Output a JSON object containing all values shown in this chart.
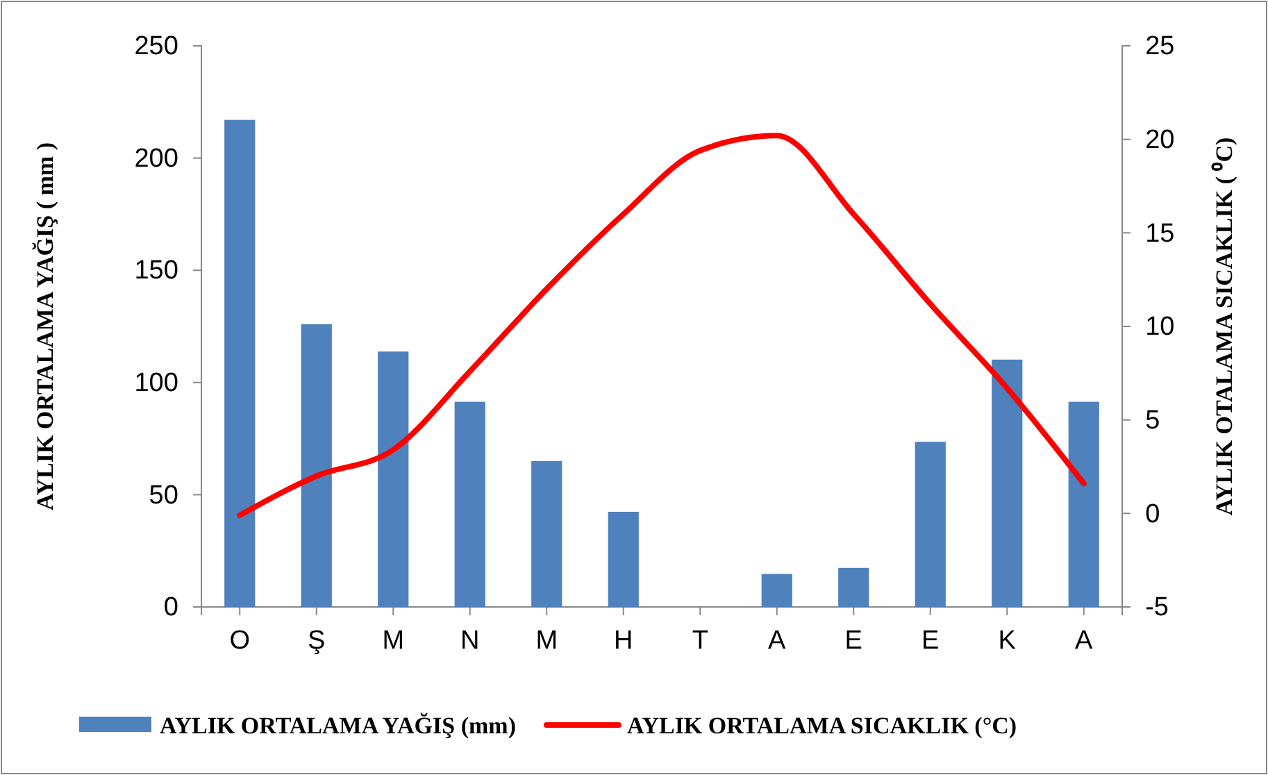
{
  "chart_data": {
    "type": "bar",
    "categories": [
      "O",
      "Ş",
      "M",
      "N",
      "M",
      "H",
      "T",
      "A",
      "E",
      "E",
      "K",
      "A"
    ],
    "ylabel": "AYLIK ORTALAMA YAĞIŞ  ( mm )",
    "y2label": "AYLIK OTALAMA SICAKLIK  ( ⁰C)",
    "ylim": [
      0,
      250
    ],
    "yticks": [
      0,
      50,
      100,
      150,
      200,
      250
    ],
    "y2lim": [
      -5,
      25
    ],
    "y2ticks": [
      -5,
      0,
      5,
      10,
      15,
      20,
      25
    ],
    "series": [
      {
        "name": "AYLIK  ORTALAMA YAĞIŞ (mm)",
        "color": "#4f81bd",
        "values": [
          217,
          126,
          113.8,
          91.4,
          65,
          42.4,
          0,
          14.7,
          17.4,
          73.6,
          110.2,
          91.4
        ]
      },
      {
        "name": "AYLIK ORTALAMA SICAKLIK (°C)",
        "type": "line",
        "axis": "y2",
        "color": "#ff0000",
        "values": [
          -0.1,
          2.0,
          3.4,
          7.6,
          12.0,
          16.0,
          19.4,
          20.2,
          16.0,
          11.2,
          6.7,
          1.6
        ]
      }
    ],
    "legend": "bottom",
    "grid": false,
    "marker": "none",
    "line_style": "solid"
  }
}
